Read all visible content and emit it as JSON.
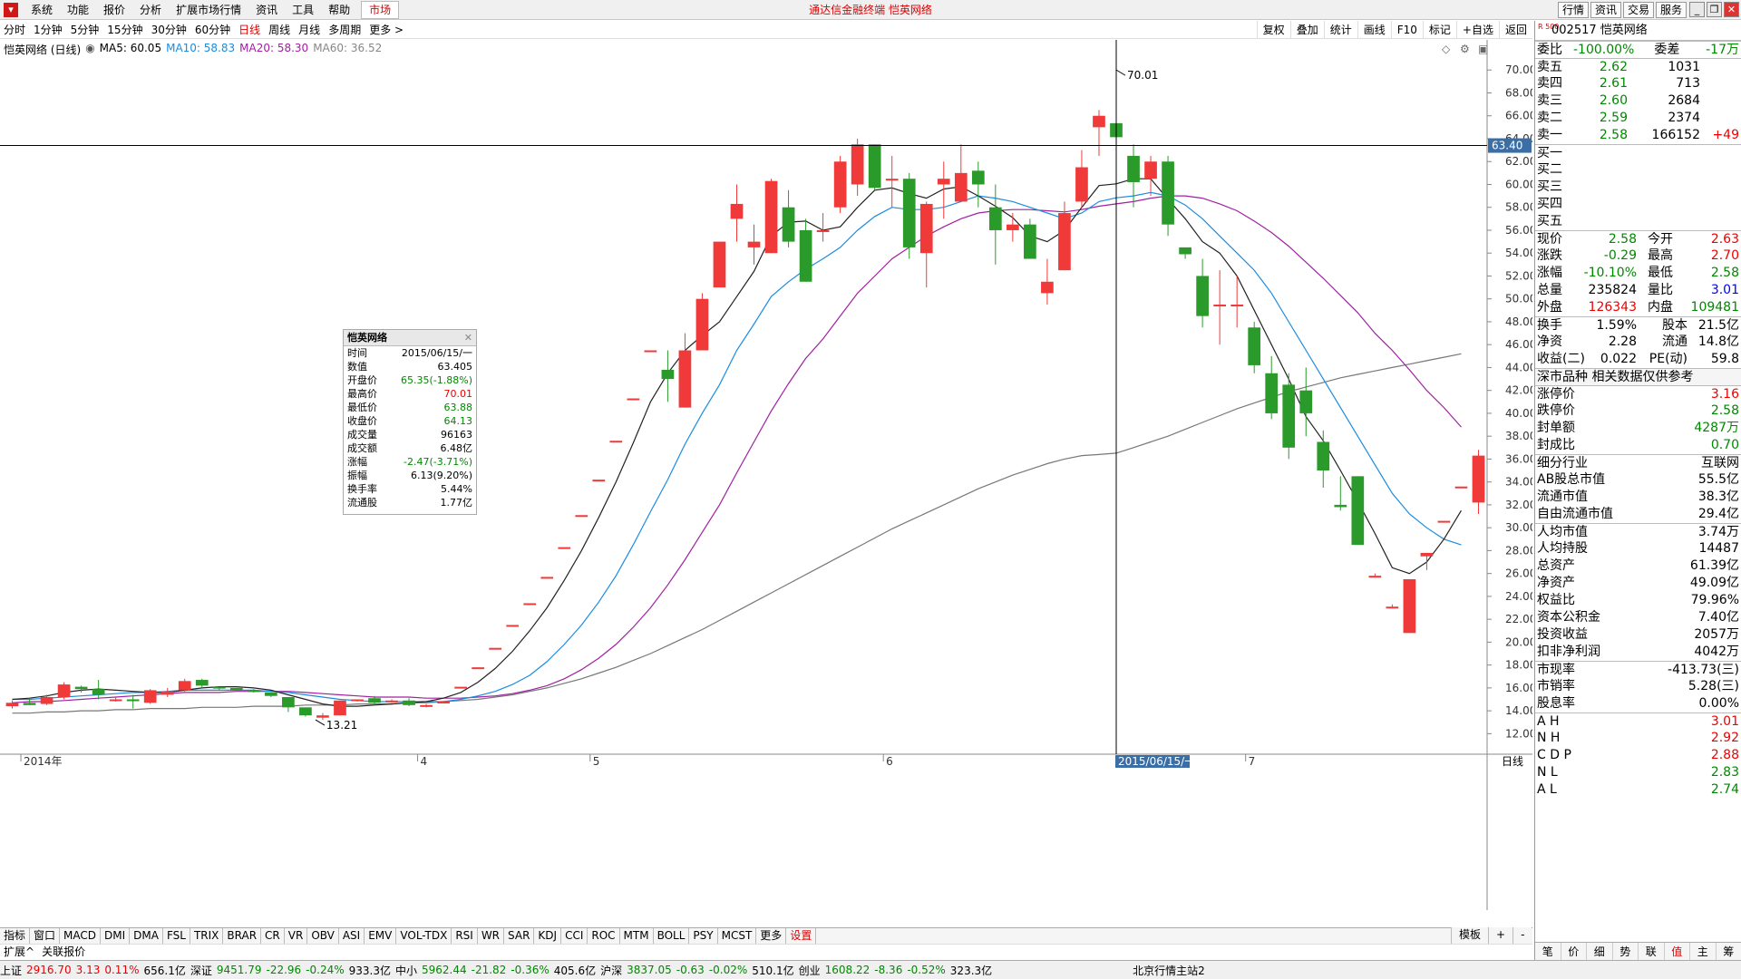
{
  "window": {
    "title": "通达信金融终端 恺英网络",
    "menu": [
      "系统",
      "功能",
      "报价",
      "分析",
      "扩展市场行情",
      "资讯",
      "工具",
      "帮助"
    ],
    "market_tab": "市场",
    "top_right": [
      "行情",
      "资讯",
      "交易",
      "服务"
    ]
  },
  "toolbar": {
    "periods": [
      "分时",
      "1分钟",
      "5分钟",
      "15分钟",
      "30分钟",
      "60分钟",
      "日线",
      "周线",
      "月线",
      "多周期",
      "更多 >"
    ],
    "active_period": "日线",
    "tools": [
      "复权",
      "叠加",
      "统计",
      "画线",
      "F10",
      "标记",
      "+自选",
      "返回"
    ]
  },
  "legend": {
    "name": "恺英网络 (日线)",
    "ma5": "MA5: 60.05",
    "ma10": "MA10: 58.83",
    "ma20": "MA20: 58.30",
    "ma60": "MA60: 36.52"
  },
  "crosshair": {
    "price_label": "63.40",
    "date_label": "2015/06/15/一"
  },
  "annotations": {
    "high": "70.01",
    "low": "13.21"
  },
  "x_labels": [
    {
      "label": "2014年",
      "date": "2014-11"
    },
    {
      "label": "4",
      "date": "2015-04"
    },
    {
      "label": "5",
      "date": "2015-05"
    },
    {
      "label": "6",
      "date": "2015-06"
    },
    {
      "label": "7",
      "date": "2015-07"
    }
  ],
  "period_label": "日线",
  "info_box": {
    "title": "恺英网络",
    "rows": [
      [
        "时间",
        "2015/06/15/一"
      ],
      [
        "数值",
        "63.405"
      ],
      [
        "开盘价",
        "65.35(-1.88%)"
      ],
      [
        "最高价",
        "70.01"
      ],
      [
        "最低价",
        "63.88"
      ],
      [
        "收盘价",
        "64.13"
      ],
      [
        "成交量",
        "96163"
      ],
      [
        "成交额",
        "6.48亿"
      ],
      [
        "涨幅",
        "-2.47(-3.71%)"
      ],
      [
        "振幅",
        "6.13(9.20%)"
      ],
      [
        "换手率",
        "5.44%"
      ],
      [
        "流通股",
        "1.77亿"
      ]
    ],
    "row_colors": [
      "k",
      "k",
      "g",
      "r",
      "g",
      "g",
      "k",
      "k",
      "g",
      "k",
      "k",
      "k"
    ]
  },
  "chart_data": {
    "type": "candlestick",
    "ylim": [
      11,
      72
    ],
    "yticks": [
      12,
      14,
      16,
      18,
      20,
      22,
      24,
      26,
      28,
      30,
      32,
      34,
      36,
      38,
      40,
      42,
      44,
      46,
      48,
      50,
      52,
      54,
      56,
      58,
      60,
      62,
      64,
      66,
      68,
      70
    ],
    "candles": [
      [
        14.4,
        14.9,
        14.2,
        14.7
      ],
      [
        14.7,
        15.0,
        14.5,
        14.5
      ],
      [
        14.6,
        15.4,
        14.5,
        15.2
      ],
      [
        15.2,
        16.5,
        15.0,
        16.3
      ],
      [
        16.1,
        16.2,
        15.6,
        15.9
      ],
      [
        15.9,
        16.7,
        15.0,
        15.4
      ],
      [
        15.0,
        15.2,
        14.8,
        15.0
      ],
      [
        15.0,
        15.4,
        14.2,
        14.9
      ],
      [
        14.7,
        15.9,
        14.6,
        15.8
      ],
      [
        15.4,
        16.0,
        15.2,
        15.7
      ],
      [
        15.8,
        16.8,
        15.6,
        16.6
      ],
      [
        16.7,
        16.8,
        16.0,
        16.2
      ],
      [
        16.1,
        16.1,
        15.8,
        16.0
      ],
      [
        16.0,
        16.0,
        15.8,
        15.8
      ],
      [
        15.8,
        15.9,
        15.6,
        15.7
      ],
      [
        15.6,
        15.6,
        15.2,
        15.3
      ],
      [
        15.2,
        15.2,
        13.9,
        14.3
      ],
      [
        14.3,
        14.3,
        13.5,
        13.6
      ],
      [
        13.4,
        13.8,
        13.2,
        13.6
      ],
      [
        13.6,
        14.9,
        13.6,
        14.9
      ],
      [
        14.9,
        15.0,
        14.8,
        15.0
      ],
      [
        15.1,
        15.3,
        14.5,
        14.7
      ],
      [
        14.8,
        15.0,
        14.7,
        14.9
      ],
      [
        14.9,
        15.1,
        14.4,
        14.5
      ],
      [
        14.4,
        14.6,
        14.3,
        14.5
      ],
      [
        14.8,
        14.8,
        14.8,
        14.8
      ],
      [
        16.1,
        16.1,
        16.1,
        16.1
      ],
      [
        17.8,
        17.8,
        17.8,
        17.8
      ],
      [
        19.5,
        19.5,
        19.5,
        19.5
      ],
      [
        21.5,
        21.5,
        21.5,
        21.5
      ],
      [
        23.4,
        23.4,
        23.4,
        23.4
      ],
      [
        25.7,
        25.7,
        25.7,
        25.7
      ],
      [
        28.3,
        28.3,
        28.3,
        28.3
      ],
      [
        31.1,
        31.1,
        31.1,
        31.1
      ],
      [
        34.2,
        34.2,
        34.2,
        34.2
      ],
      [
        37.6,
        37.6,
        37.6,
        37.6
      ],
      [
        41.3,
        41.3,
        41.3,
        41.3
      ],
      [
        45.5,
        45.5,
        45.5,
        45.5
      ],
      [
        43.8,
        45.5,
        41.0,
        43.0
      ],
      [
        40.5,
        47.0,
        40.5,
        45.5
      ],
      [
        45.5,
        50.5,
        45.5,
        50.0
      ],
      [
        51.0,
        55.0,
        51.0,
        55.0
      ],
      [
        57.0,
        60.0,
        55.0,
        58.3
      ],
      [
        54.5,
        56.5,
        53.0,
        55.0
      ],
      [
        54.0,
        60.5,
        54.0,
        60.3
      ],
      [
        58.0,
        59.5,
        54.5,
        55.0
      ],
      [
        56.0,
        57.0,
        51.5,
        51.5
      ],
      [
        56.0,
        57.5,
        55.0,
        56.0
      ],
      [
        58.0,
        62.5,
        57.5,
        62.0
      ],
      [
        60.0,
        64.0,
        59.0,
        63.5
      ],
      [
        63.5,
        63.5,
        59.5,
        59.7
      ],
      [
        60.5,
        62.5,
        58.0,
        60.5
      ],
      [
        60.5,
        61.0,
        53.5,
        54.5
      ],
      [
        54.0,
        58.5,
        51.0,
        58.3
      ],
      [
        60.0,
        62.0,
        57.0,
        60.5
      ],
      [
        58.5,
        63.5,
        58.5,
        61.0
      ],
      [
        61.2,
        62.0,
        58.0,
        60.0
      ],
      [
        58.0,
        60.0,
        53.0,
        56.0
      ],
      [
        56.0,
        57.5,
        55.0,
        56.5
      ],
      [
        56.5,
        57.0,
        53.5,
        53.5
      ],
      [
        50.5,
        53.5,
        49.5,
        51.5
      ],
      [
        52.5,
        58.5,
        52.5,
        57.5
      ],
      [
        58.5,
        63.0,
        58.0,
        61.5
      ],
      [
        65.0,
        66.5,
        62.5,
        66.0
      ],
      [
        65.35,
        70.01,
        63.88,
        64.13
      ],
      [
        62.5,
        63.5,
        58.0,
        60.2
      ],
      [
        60.5,
        62.5,
        59.0,
        62.0
      ],
      [
        62.0,
        62.5,
        55.5,
        56.5
      ],
      [
        54.5,
        54.5,
        53.5,
        53.9
      ],
      [
        52.0,
        53.5,
        47.5,
        48.5
      ],
      [
        49.5,
        52.5,
        46.0,
        49.5
      ],
      [
        49.5,
        52.0,
        47.5,
        49.5
      ],
      [
        47.5,
        48.0,
        43.5,
        44.2
      ],
      [
        43.5,
        45.0,
        39.5,
        40.0
      ],
      [
        42.5,
        43.5,
        36.0,
        37.0
      ],
      [
        42.0,
        44.0,
        38.0,
        40.0
      ],
      [
        37.5,
        38.5,
        33.5,
        35.0
      ],
      [
        32.0,
        34.5,
        31.5,
        31.8
      ],
      [
        34.5,
        34.5,
        28.5,
        28.5
      ],
      [
        25.8,
        26.0,
        25.7,
        25.8
      ],
      [
        23.1,
        23.3,
        23.0,
        23.1
      ],
      [
        20.8,
        25.5,
        20.8,
        25.5
      ],
      [
        27.5,
        27.8,
        26.3,
        27.8
      ],
      [
        30.6,
        30.6,
        30.6,
        30.6
      ],
      [
        33.6,
        33.6,
        33.6,
        33.6
      ],
      [
        32.2,
        36.8,
        31.2,
        36.3
      ]
    ],
    "ma5": [
      15.0,
      15.1,
      15.3,
      15.6,
      15.8,
      15.9,
      15.8,
      15.7,
      15.6,
      15.6,
      15.8,
      16.0,
      16.1,
      16.1,
      16.0,
      15.8,
      15.4,
      15.0,
      14.6,
      14.4,
      14.4,
      14.5,
      14.6,
      14.7,
      14.8,
      15.1,
      15.6,
      16.5,
      17.7,
      19.2,
      21.0,
      23.0,
      25.4,
      28.0,
      30.9,
      34.0,
      37.4,
      41.0,
      43.5,
      45.5,
      46.8,
      48.0,
      50.2,
      52.4,
      55.5,
      56.7,
      56.8,
      56.0,
      56.3,
      58.0,
      59.5,
      59.7,
      59.2,
      58.8,
      59.6,
      59.8,
      59.0,
      58.1,
      57.1,
      55.5,
      55.0,
      56.0,
      58.0,
      59.9,
      60.05,
      60.5,
      60.5,
      58.7,
      57.0,
      55.0,
      54.0,
      52.0,
      49.0,
      46.0,
      43.0,
      39.7,
      37.6,
      35.0,
      32.3,
      29.5,
      26.5,
      26.0,
      27.0,
      29.0,
      31.5
    ],
    "ma10": [
      15.0,
      15.0,
      15.1,
      15.2,
      15.3,
      15.4,
      15.5,
      15.6,
      15.6,
      15.7,
      15.8,
      15.8,
      15.8,
      15.8,
      15.8,
      15.7,
      15.6,
      15.4,
      15.2,
      15.0,
      14.9,
      14.8,
      14.8,
      14.8,
      14.8,
      14.8,
      15.0,
      15.3,
      15.7,
      16.3,
      17.1,
      18.3,
      19.8,
      21.5,
      23.5,
      25.8,
      28.5,
      31.4,
      34.2,
      37.3,
      40.0,
      42.5,
      45.5,
      47.8,
      50.2,
      51.5,
      52.6,
      53.5,
      54.5,
      56.0,
      57.2,
      58.0,
      57.8,
      57.8,
      58.0,
      58.5,
      59.0,
      58.8,
      58.5,
      58.0,
      57.5,
      57.0,
      57.5,
      58.5,
      58.83,
      59.0,
      59.3,
      59.0,
      58.2,
      57.0,
      55.5,
      54.0,
      52.5,
      50.5,
      48.0,
      45.5,
      43.0,
      40.5,
      38.0,
      35.5,
      33.0,
      31.2,
      30.0,
      29.0,
      28.5
    ],
    "ma20": [
      14.7,
      14.8,
      14.8,
      14.9,
      15.0,
      15.1,
      15.2,
      15.3,
      15.4,
      15.5,
      15.6,
      15.6,
      15.6,
      15.7,
      15.7,
      15.7,
      15.7,
      15.6,
      15.5,
      15.4,
      15.3,
      15.2,
      15.2,
      15.2,
      15.1,
      15.1,
      15.1,
      15.2,
      15.3,
      15.5,
      15.8,
      16.2,
      16.8,
      17.6,
      18.6,
      19.8,
      21.3,
      23.0,
      25.0,
      27.2,
      29.6,
      32.0,
      34.8,
      37.5,
      40.2,
      42.6,
      44.8,
      46.5,
      48.5,
      50.5,
      52.0,
      53.5,
      54.5,
      55.5,
      56.3,
      57.0,
      57.5,
      57.7,
      57.8,
      57.8,
      57.7,
      57.6,
      57.8,
      58.1,
      58.3,
      58.5,
      58.8,
      59.0,
      59.0,
      58.8,
      58.3,
      57.7,
      56.8,
      55.8,
      54.6,
      53.2,
      51.8,
      50.3,
      48.8,
      47.0,
      45.5,
      43.8,
      42.0,
      40.5,
      38.8
    ],
    "ma60": [
      13.8,
      13.8,
      13.9,
      13.9,
      14.0,
      14.0,
      14.1,
      14.1,
      14.2,
      14.2,
      14.2,
      14.3,
      14.3,
      14.3,
      14.4,
      14.4,
      14.4,
      14.5,
      14.5,
      14.5,
      14.6,
      14.6,
      14.6,
      14.7,
      14.7,
      14.8,
      14.9,
      15.0,
      15.2,
      15.4,
      15.7,
      16.0,
      16.4,
      16.8,
      17.3,
      17.8,
      18.4,
      19.0,
      19.7,
      20.4,
      21.1,
      21.9,
      22.7,
      23.5,
      24.3,
      25.1,
      25.9,
      26.7,
      27.5,
      28.3,
      29.1,
      29.9,
      30.6,
      31.3,
      32.0,
      32.7,
      33.4,
      34.0,
      34.6,
      35.1,
      35.6,
      36.0,
      36.3,
      36.4,
      36.52,
      37.0,
      37.5,
      38.0,
      38.6,
      39.2,
      39.8,
      40.4,
      40.9,
      41.4,
      41.9,
      42.3,
      42.7,
      43.1,
      43.4,
      43.7,
      44.0,
      44.3,
      44.6,
      44.9,
      45.2
    ]
  },
  "bottom_tabs": [
    "指标",
    "窗口",
    "MACD",
    "DMI",
    "DMA",
    "FSL",
    "TRIX",
    "BRAR",
    "CR",
    "VR",
    "OBV",
    "ASI",
    "EMV",
    "VOL-TDX",
    "RSI",
    "WR",
    "SAR",
    "KDJ",
    "CCI",
    "ROC",
    "MTM",
    "BOLL",
    "PSY",
    "MCST",
    "更多",
    "设置"
  ],
  "bottom_tabs2": [
    "扩展^",
    "关联报价"
  ],
  "bottom_right": [
    "模板",
    "+",
    "-"
  ],
  "statusbar": [
    {
      "t": "上证",
      "c": "k"
    },
    {
      "t": "2916.70",
      "c": "r"
    },
    {
      "t": "3.13",
      "c": "r"
    },
    {
      "t": "0.11%",
      "c": "r"
    },
    {
      "t": "656.1亿",
      "c": "k"
    },
    {
      "t": "深证",
      "c": "k"
    },
    {
      "t": "9451.79",
      "c": "g"
    },
    {
      "t": "-22.96",
      "c": "g"
    },
    {
      "t": "-0.24%",
      "c": "g"
    },
    {
      "t": "933.3亿",
      "c": "k"
    },
    {
      "t": "中小",
      "c": "k"
    },
    {
      "t": "5962.44",
      "c": "g"
    },
    {
      "t": "-21.82",
      "c": "g"
    },
    {
      "t": "-0.36%",
      "c": "g"
    },
    {
      "t": "405.6亿",
      "c": "k"
    },
    {
      "t": "沪深",
      "c": "k"
    },
    {
      "t": "3837.05",
      "c": "g"
    },
    {
      "t": "-0.63",
      "c": "g"
    },
    {
      "t": "-0.02%",
      "c": "g"
    },
    {
      "t": "510.1亿",
      "c": "k"
    },
    {
      "t": "创业",
      "c": "k"
    },
    {
      "t": "1608.22",
      "c": "g"
    },
    {
      "t": "-8.36",
      "c": "g"
    },
    {
      "t": "-0.52%",
      "c": "g"
    },
    {
      "t": "323.3亿",
      "c": "k"
    },
    {
      "t": "北京行情主站2",
      "c": "k"
    }
  ],
  "right_panel": {
    "code": "002517",
    "name": "恺英网络",
    "badge": "R 500",
    "wb": {
      "l1": "委比",
      "v1": "-100.00%",
      "l2": "委差",
      "v2": "-17万"
    },
    "sells": [
      [
        "卖五",
        "2.62",
        "1031",
        ""
      ],
      [
        "卖四",
        "2.61",
        "713",
        ""
      ],
      [
        "卖三",
        "2.60",
        "2684",
        ""
      ],
      [
        "卖二",
        "2.59",
        "2374",
        ""
      ],
      [
        "卖一",
        "2.58",
        "166152",
        "+49"
      ]
    ],
    "buys": [
      "买一",
      "买二",
      "买三",
      "买四",
      "买五"
    ],
    "quote": [
      [
        "现价",
        "2.58",
        "g",
        "今开",
        "2.63",
        "r"
      ],
      [
        "涨跌",
        "-0.29",
        "g",
        "最高",
        "2.70",
        "r"
      ],
      [
        "涨幅",
        "-10.10%",
        "g",
        "最低",
        "2.58",
        "g"
      ],
      [
        "总量",
        "235824",
        "k",
        "量比",
        "3.01",
        "b"
      ],
      [
        "外盘",
        "126343",
        "r",
        "内盘",
        "109481",
        "g"
      ]
    ],
    "fin": [
      [
        "换手",
        "1.59%",
        "股本",
        "21.5亿"
      ],
      [
        "净资",
        "2.28",
        "流通",
        "14.8亿"
      ],
      [
        "收益(二)",
        "0.022",
        "PE(动)",
        "59.8"
      ]
    ],
    "section_title": "深市品种 相关数据仅供参考",
    "limits": [
      [
        "涨停价",
        "3.16",
        "r"
      ],
      [
        "跌停价",
        "2.58",
        "g"
      ],
      [
        "封单额",
        "4287万",
        "g"
      ],
      [
        "封成比",
        "0.70",
        "g"
      ]
    ],
    "details": [
      [
        "细分行业",
        "互联网"
      ],
      [
        "AB股总市值",
        "55.5亿"
      ],
      [
        "流通市值",
        "38.3亿"
      ],
      [
        "自由流通市值",
        "29.4亿"
      ],
      [
        "人均市值",
        "3.74万"
      ],
      [
        "人均持股",
        "14487"
      ],
      [
        "总资产",
        "61.39亿"
      ],
      [
        "净资产",
        "49.09亿"
      ],
      [
        "权益比",
        "79.96%"
      ],
      [
        "资本公积金",
        "7.40亿"
      ],
      [
        "投资收益",
        "2057万"
      ],
      [
        "扣非净利润",
        "4042万"
      ],
      [
        "市现率",
        "-413.73(三)"
      ],
      [
        "市销率",
        "5.28(三)"
      ],
      [
        "股息率",
        "0.00%"
      ]
    ],
    "pivots": [
      [
        "A H",
        "3.01",
        "r"
      ],
      [
        "N H",
        "2.92",
        "r"
      ],
      [
        "C D P",
        "2.88",
        "r"
      ],
      [
        "N L",
        "2.83",
        "g"
      ],
      [
        "A L",
        "2.74",
        "g"
      ]
    ],
    "tabs": [
      "笔",
      "价",
      "细",
      "势",
      "联",
      "值",
      "主",
      "筹"
    ],
    "active_tab": "值"
  }
}
